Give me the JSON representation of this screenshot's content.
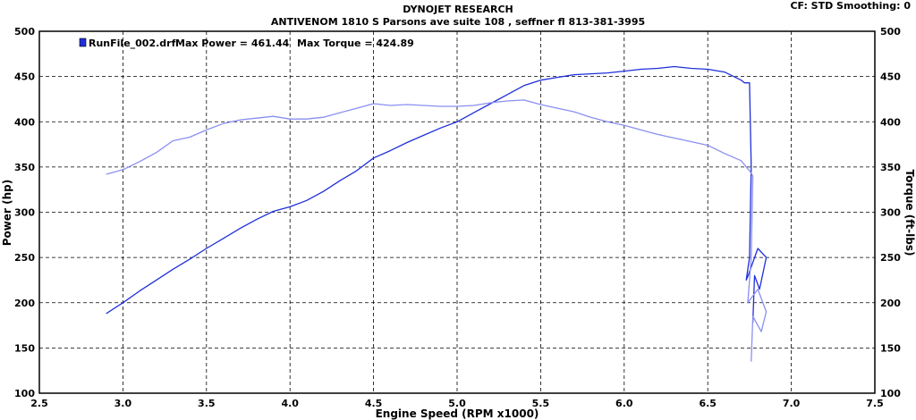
{
  "header": {
    "title": "DYNOJET RESEARCH",
    "subtitle": "ANTIVENOM 1810 S Parsons ave suite 108 , seffner fl 813-381-3995",
    "cf_info": "CF: STD  Smoothing: 0"
  },
  "legend": {
    "run_name": "RunFile_002.drf",
    "max_power_text": "Max Power = 461.44",
    "max_torque_text": "Max Torque = 424.89",
    "swatch_color": "#1f2fd9"
  },
  "chart_data": {
    "type": "line",
    "title": "DYNOJET RESEARCH",
    "subtitle": "ANTIVENOM 1810 S Parsons ave suite 108 , seffner fl 813-381-3995",
    "xlabel": "Engine Speed (RPM x1000)",
    "ylabel": "Power (hp)",
    "y2label": "Torque (ft-lbs)",
    "xlim": [
      2.5,
      7.5
    ],
    "ylim": [
      100,
      500
    ],
    "y2lim": [
      100,
      500
    ],
    "xticks": [
      "2.5",
      "3.0",
      "3.5",
      "4.0",
      "4.5",
      "5.0",
      "5.5",
      "6.0",
      "6.5",
      "7.0",
      "7.5"
    ],
    "yticks": [
      "100",
      "150",
      "200",
      "250",
      "300",
      "350",
      "400",
      "450",
      "500"
    ],
    "grid": true,
    "max_power": 461.44,
    "max_torque": 424.89,
    "series": [
      {
        "key": "power",
        "color": "#1f2fd9",
        "x": [
          2.9,
          3.0,
          3.1,
          3.2,
          3.3,
          3.4,
          3.5,
          3.6,
          3.7,
          3.8,
          3.9,
          4.0,
          4.1,
          4.2,
          4.3,
          4.4,
          4.5,
          4.6,
          4.7,
          4.8,
          4.9,
          5.0,
          5.1,
          5.2,
          5.3,
          5.4,
          5.5,
          5.6,
          5.7,
          5.8,
          5.9,
          6.0,
          6.1,
          6.2,
          6.3,
          6.4,
          6.5,
          6.6,
          6.7,
          6.72,
          6.75,
          6.76,
          6.75,
          6.73,
          6.74,
          6.8,
          6.85,
          6.81,
          6.78,
          6.77
        ],
        "y": [
          188,
          200,
          213,
          225,
          237,
          248,
          260,
          271,
          282,
          292,
          301,
          306,
          313,
          323,
          335,
          346,
          360,
          368,
          377,
          385,
          393,
          400,
          410,
          420,
          430,
          440,
          446,
          449,
          452,
          453,
          454,
          456,
          458,
          459,
          461,
          459,
          458,
          455,
          446,
          443,
          443,
          350,
          250,
          225,
          229,
          260,
          250,
          215,
          230,
          178
        ]
      },
      {
        "key": "torque",
        "color": "#8a8ff0",
        "x": [
          2.9,
          3.0,
          3.1,
          3.2,
          3.3,
          3.4,
          3.5,
          3.6,
          3.7,
          3.8,
          3.9,
          4.0,
          4.1,
          4.2,
          4.3,
          4.4,
          4.5,
          4.6,
          4.7,
          4.8,
          4.9,
          5.0,
          5.1,
          5.2,
          5.3,
          5.4,
          5.5,
          5.6,
          5.7,
          5.8,
          5.9,
          6.0,
          6.1,
          6.2,
          6.3,
          6.4,
          6.5,
          6.6,
          6.7,
          6.73,
          6.75,
          6.77,
          6.76,
          6.74,
          6.8,
          6.85,
          6.82,
          6.77,
          6.76
        ],
        "y": [
          342,
          347,
          356,
          366,
          379,
          383,
          391,
          398,
          402,
          404,
          406,
          403,
          403,
          405,
          410,
          415,
          420,
          418,
          419,
          418,
          417,
          417,
          418,
          421,
          423,
          424,
          419,
          415,
          411,
          405,
          400,
          396,
          391,
          386,
          382,
          378,
          374,
          365,
          357,
          350,
          346,
          340,
          250,
          200,
          215,
          190,
          168,
          185,
          135
        ]
      }
    ]
  }
}
